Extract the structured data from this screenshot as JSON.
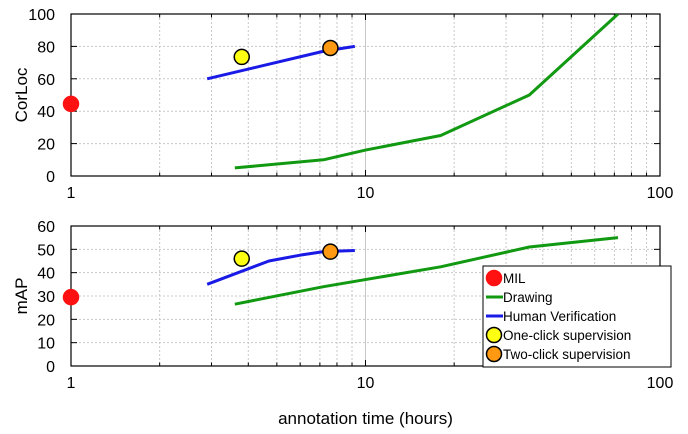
{
  "chart_data": [
    {
      "type": "line",
      "xscale": "log",
      "xlim": [
        1,
        100
      ],
      "ylim": [
        0,
        100
      ],
      "xticks": [
        1,
        10,
        100
      ],
      "yticks": [
        0,
        20,
        40,
        60,
        80,
        100
      ],
      "ylabel": "CorLoc",
      "xlabel": "",
      "grid": true,
      "series": [
        {
          "name": "Drawing",
          "kind": "line",
          "color": "#119911",
          "x": [
            3.6,
            7.2,
            10.0,
            18.0,
            36.0,
            72.0
          ],
          "y": [
            5,
            10,
            16,
            25,
            50,
            100
          ]
        },
        {
          "name": "Human Verification",
          "kind": "line",
          "color": "#1a1ae6",
          "x": [
            2.9,
            4.7,
            7.2,
            9.2
          ],
          "y": [
            60,
            69,
            77,
            80
          ]
        },
        {
          "name": "MIL",
          "kind": "point",
          "color": "#ff1111",
          "x": [
            1.0
          ],
          "y": [
            44.5
          ]
        },
        {
          "name": "One-click supervision",
          "kind": "point",
          "color": "#ffff11",
          "x": [
            3.8
          ],
          "y": [
            73.5
          ]
        },
        {
          "name": "Two-click supervision",
          "kind": "point",
          "color": "#ff9911",
          "x": [
            7.6
          ],
          "y": [
            79
          ]
        }
      ]
    },
    {
      "type": "line",
      "xscale": "log",
      "xlim": [
        1,
        100
      ],
      "ylim": [
        0,
        60
      ],
      "xticks": [
        1,
        10,
        100
      ],
      "yticks": [
        0,
        10,
        20,
        30,
        40,
        50,
        60
      ],
      "ylabel": "mAP",
      "xlabel": "annotation time (hours)",
      "grid": true,
      "legend": "bottom-right",
      "series": [
        {
          "name": "MIL",
          "kind": "point",
          "color": "#ff1111",
          "x": [
            1.0
          ],
          "y": [
            29.5
          ]
        },
        {
          "name": "Drawing",
          "kind": "line",
          "color": "#119911",
          "x": [
            3.6,
            7.2,
            18.0,
            36.0,
            72.0
          ],
          "y": [
            26.5,
            34,
            42.5,
            51,
            55
          ]
        },
        {
          "name": "Human Verification",
          "kind": "line",
          "color": "#1a1ae6",
          "x": [
            2.9,
            4.7,
            6.0,
            7.2,
            9.2
          ],
          "y": [
            35,
            45,
            47.5,
            49,
            49.5
          ]
        },
        {
          "name": "One-click supervision",
          "kind": "point",
          "color": "#ffff11",
          "x": [
            3.8
          ],
          "y": [
            46
          ]
        },
        {
          "name": "Two-click supervision",
          "kind": "point",
          "color": "#ff9911",
          "x": [
            7.6
          ],
          "y": [
            49
          ]
        }
      ]
    }
  ]
}
